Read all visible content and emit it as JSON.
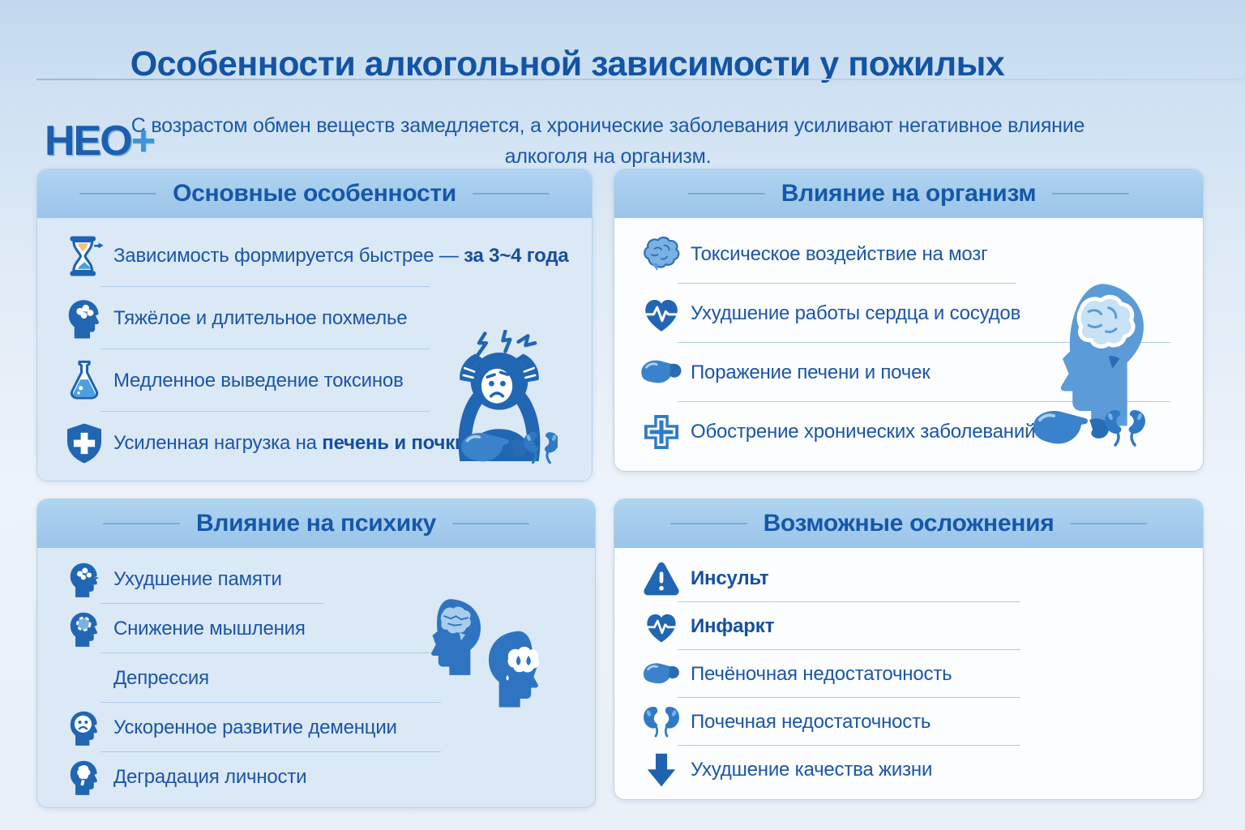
{
  "header": {
    "title": "Особенности алкогольной зависимости у пожилых",
    "subtitle_line1": "С возрастом обмен веществ замедляется, а хронические заболевания усиливают негативное влияние",
    "subtitle_line2": "алкоголя на организм.",
    "logo_text": "НЕО",
    "logo_plus": "+"
  },
  "colors": {
    "accent_blue": "#2166b2",
    "light_icon_blue": "#5b9bd8",
    "text_blue": "#1a55a8",
    "title_blue": "#1254a6",
    "header_band": "#a4cbed",
    "panel_tint": "#dbe8f5",
    "panel_white": "#fcfdff",
    "divider": "#aecbe6",
    "sand_orange": "#f2c078"
  },
  "panels": [
    {
      "id": "key-features",
      "title": "Основные особенности",
      "items": [
        {
          "icon": "hourglass-icon",
          "text": "Зависимость формируется быстрее — ",
          "bold": "за 3~4 года"
        },
        {
          "icon": "hangover-head-icon",
          "text": "Тяжёлое и длительное похмелье",
          "bold": ""
        },
        {
          "icon": "flask-icon",
          "text": "Медленное выведение токсинов",
          "bold": ""
        },
        {
          "icon": "shield-cross-icon",
          "text": "Усиленная нагрузка на ",
          "bold": "печень и почки"
        }
      ],
      "illustrations": [
        "headache-person-illustration",
        "liver-kidneys-illustration"
      ]
    },
    {
      "id": "body-impact",
      "title": "Влияние на организм",
      "items": [
        {
          "icon": "brain-icon",
          "text": "Токсическое воздействие на мозг",
          "bold": ""
        },
        {
          "icon": "heart-pulse-icon",
          "text": "Ухудшение работы сердца и сосудов",
          "bold": ""
        },
        {
          "icon": "liver-icon",
          "text": "Поражение печени и почек",
          "bold": ""
        },
        {
          "icon": "medical-cross-icon",
          "text": "Обострение хронических заболеваний",
          "bold": ""
        }
      ],
      "illustrations": [
        "head-profile-brain-illustration",
        "liver-kidneys-illustration"
      ]
    },
    {
      "id": "psyche-impact",
      "title": "Влияние на психику",
      "items": [
        {
          "icon": "memory-head-icon",
          "text": "Ухудшение памяти",
          "bold": ""
        },
        {
          "icon": "thinking-head-icon",
          "text": "Снижение мышления",
          "bold": ""
        },
        {
          "icon": null,
          "text": "Депрессия",
          "bold": ""
        },
        {
          "icon": "sad-face-head-icon",
          "text": "Ускоренное развитие деменции",
          "bold": ""
        },
        {
          "icon": "degradation-head-icon",
          "text": "Деградация личности",
          "bold": ""
        }
      ],
      "illustrations": [
        "two-heads-illustration"
      ]
    },
    {
      "id": "complications",
      "title": "Возможные осложнения",
      "items": [
        {
          "icon": "warning-triangle-icon",
          "text": "",
          "bold": "Инсульт"
        },
        {
          "icon": "heart-pulse-icon",
          "text": "",
          "bold": "Инфаркт"
        },
        {
          "icon": "liver-icon",
          "text": "Печёночная недостаточность",
          "bold": ""
        },
        {
          "icon": "kidneys-icon",
          "text": "Почечная недостаточность",
          "bold": ""
        },
        {
          "icon": "down-arrow-icon",
          "text": "Ухудшение качества жизни",
          "bold": ""
        }
      ],
      "illustrations": []
    }
  ]
}
